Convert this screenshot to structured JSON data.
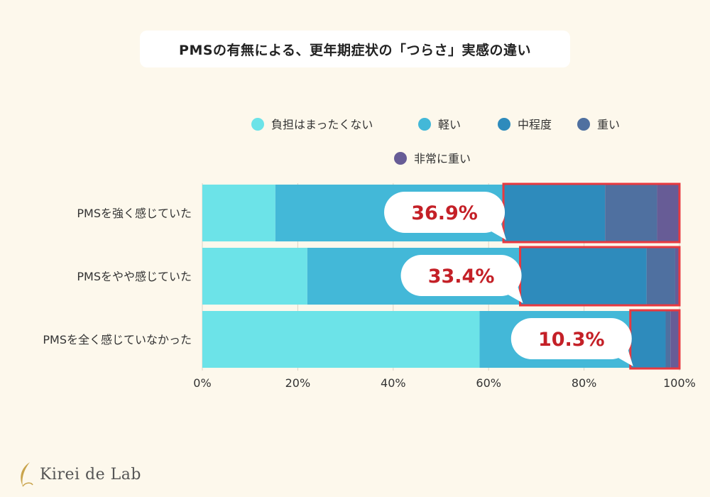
{
  "title": "PMSの有無による、更年期症状の「つらさ」実感の違い",
  "colors": {
    "background": "#fdf8ec",
    "highlight": "#e8393f",
    "callout_text": "#c42027",
    "grid": "#d9d4c7"
  },
  "chart_data": {
    "type": "bar",
    "orientation": "horizontal",
    "stacked": true,
    "categories": [
      "PMSを強く感じていた",
      "PMSをやや感じていた",
      "PMSを全く感じていなかった"
    ],
    "series": [
      {
        "name": "負担はまったくない",
        "color": "#6ce3e8",
        "values": [
          15.3,
          22.0,
          58.1
        ]
      },
      {
        "name": "軽い",
        "color": "#43b8d8",
        "values": [
          47.8,
          44.6,
          31.6
        ]
      },
      {
        "name": "中程度",
        "color": "#2e8bbc",
        "values": [
          21.3,
          26.5,
          7.4
        ]
      },
      {
        "name": "重い",
        "color": "#4f70a0",
        "values": [
          10.9,
          6.0,
          1.0
        ]
      },
      {
        "name": "非常に重い",
        "color": "#675c96",
        "values": [
          4.7,
          0.9,
          1.9
        ]
      }
    ],
    "highlight_series_from": 2,
    "callouts": [
      "36.9%",
      "33.4%",
      "10.3%"
    ],
    "x_ticks": [
      "0%",
      "20%",
      "40%",
      "60%",
      "80%",
      "100%"
    ],
    "xlim": [
      0,
      100
    ],
    "grid": true,
    "legend_position": "top"
  },
  "brand": {
    "name": "Kirei de Lab",
    "icon": "feather-icon"
  }
}
